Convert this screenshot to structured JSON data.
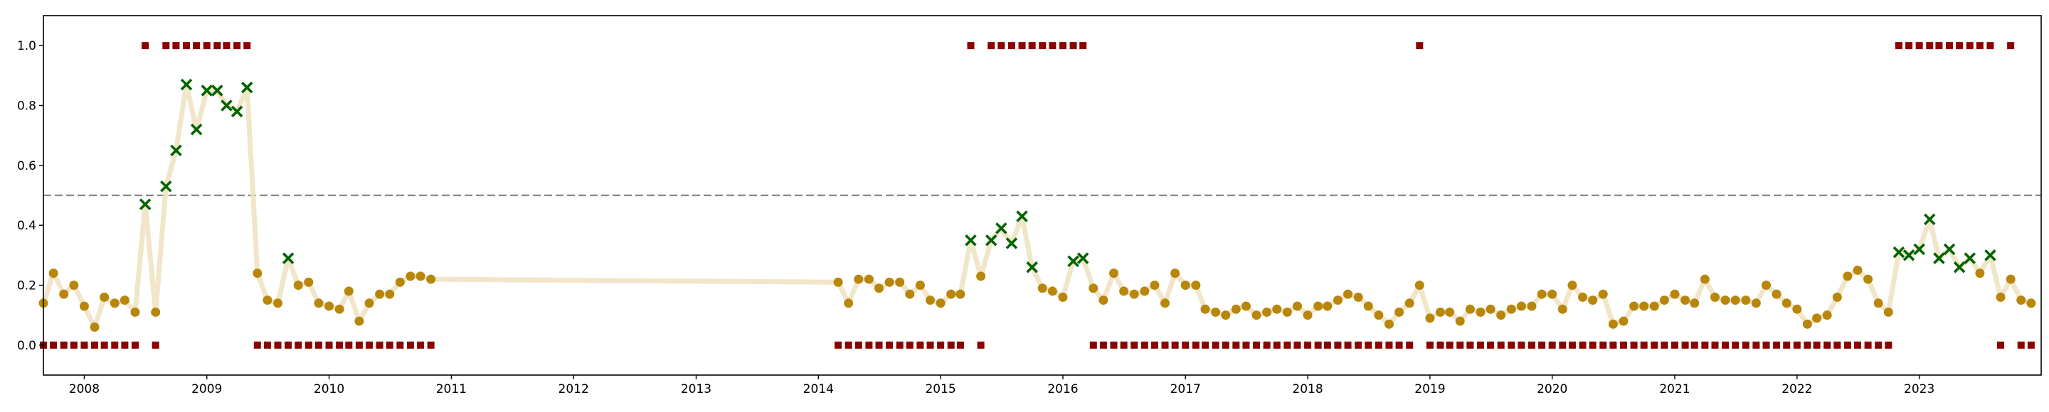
{
  "chart_data": {
    "type": "scatter",
    "title": "",
    "xlabel": "",
    "ylabel": "",
    "x_range": [
      "2007-09-01",
      "2023-12-31"
    ],
    "ylim": [
      -0.1,
      1.1
    ],
    "x_ticks": [
      "2008",
      "2009",
      "2010",
      "2011",
      "2012",
      "2013",
      "2014",
      "2015",
      "2016",
      "2017",
      "2018",
      "2019",
      "2020",
      "2021",
      "2022",
      "2023"
    ],
    "y_ticks": [
      "0.0",
      "0.2",
      "0.4",
      "0.6",
      "0.8",
      "1.0"
    ],
    "threshold": 0.5,
    "grid": false,
    "colors": {
      "line": "#f0e2c4",
      "below_marker": "#b8860b",
      "above_marker": "#006400",
      "binary_marker": "#8b0000",
      "threshold": "#888888",
      "axis": "#000000"
    },
    "series": [
      {
        "marker": "circle",
        "line": true,
        "x": [
          "2007-09-01",
          "2007-10-01",
          "2007-11-01",
          "2007-12-01",
          "2008-01-01",
          "2008-02-01",
          "2008-03-01",
          "2008-04-01",
          "2008-05-01",
          "2008-06-01",
          "2008-07-01",
          "2008-08-01",
          "2008-09-01",
          "2008-10-01",
          "2008-11-01",
          "2008-12-01",
          "2009-01-01",
          "2009-02-01",
          "2009-03-01",
          "2009-04-01",
          "2009-05-01",
          "2009-06-01",
          "2009-07-01",
          "2009-08-01",
          "2009-09-01",
          "2009-10-01",
          "2009-11-01",
          "2009-12-01",
          "2010-01-01",
          "2010-02-01",
          "2010-03-01",
          "2010-04-01",
          "2010-05-01",
          "2010-06-01",
          "2010-07-01",
          "2010-08-01",
          "2010-09-01",
          "2010-10-01",
          "2010-11-01",
          "2014-03-01",
          "2014-04-01",
          "2014-05-01",
          "2014-06-01",
          "2014-07-01",
          "2014-08-01",
          "2014-09-01",
          "2014-10-01",
          "2014-11-01",
          "2014-12-01",
          "2015-01-01",
          "2015-02-01",
          "2015-03-01",
          "2015-04-01",
          "2015-05-01",
          "2015-06-01",
          "2015-07-01",
          "2015-08-01",
          "2015-09-01",
          "2015-10-01",
          "2015-11-01",
          "2015-12-01",
          "2016-01-01",
          "2016-02-01",
          "2016-03-01",
          "2016-04-01",
          "2016-05-01",
          "2016-06-01",
          "2016-07-01",
          "2016-08-01",
          "2016-09-01",
          "2016-10-01",
          "2016-11-01",
          "2016-12-01",
          "2017-01-01",
          "2017-02-01",
          "2017-03-01",
          "2017-04-01",
          "2017-05-01",
          "2017-06-01",
          "2017-07-01",
          "2017-08-01",
          "2017-09-01",
          "2017-10-01",
          "2017-11-01",
          "2017-12-01",
          "2018-01-01",
          "2018-02-01",
          "2018-03-01",
          "2018-04-01",
          "2018-05-01",
          "2018-06-01",
          "2018-07-01",
          "2018-08-01",
          "2018-09-01",
          "2018-10-01",
          "2018-11-01",
          "2018-12-01",
          "2019-01-01",
          "2019-02-01",
          "2019-03-01",
          "2019-04-01",
          "2019-05-01",
          "2019-06-01",
          "2019-07-01",
          "2019-08-01",
          "2019-09-01",
          "2019-10-01",
          "2019-11-01",
          "2019-12-01",
          "2020-01-01",
          "2020-02-01",
          "2020-03-01",
          "2020-04-01",
          "2020-05-01",
          "2020-06-01",
          "2020-07-01",
          "2020-08-01",
          "2020-09-01",
          "2020-10-01",
          "2020-11-01",
          "2020-12-01",
          "2021-01-01",
          "2021-02-01",
          "2021-03-01",
          "2021-04-01",
          "2021-05-01",
          "2021-06-01",
          "2021-07-01",
          "2021-08-01",
          "2021-09-01",
          "2021-10-01",
          "2021-11-01",
          "2021-12-01",
          "2022-01-01",
          "2022-02-01",
          "2022-03-01",
          "2022-04-01",
          "2022-05-01",
          "2022-06-01",
          "2022-07-01",
          "2022-08-01",
          "2022-09-01",
          "2022-10-01",
          "2022-11-01",
          "2022-12-01",
          "2023-01-01",
          "2023-02-01",
          "2023-03-01",
          "2023-04-01",
          "2023-05-01",
          "2023-06-01",
          "2023-07-01",
          "2023-08-01",
          "2023-09-01",
          "2023-10-01",
          "2023-11-01",
          "2023-12-01"
        ],
        "y": [
          0.14,
          0.24,
          0.17,
          0.2,
          0.13,
          0.06,
          0.16,
          0.14,
          0.15,
          0.11,
          0.47,
          0.11,
          0.53,
          0.65,
          0.87,
          0.72,
          0.85,
          0.85,
          0.8,
          0.78,
          0.86,
          0.24,
          0.15,
          0.14,
          0.29,
          0.2,
          0.21,
          0.14,
          0.13,
          0.12,
          0.18,
          0.08,
          0.14,
          0.17,
          0.17,
          0.21,
          0.23,
          0.23,
          0.22,
          0.21,
          0.14,
          0.22,
          0.22,
          0.19,
          0.21,
          0.21,
          0.17,
          0.2,
          0.15,
          0.14,
          0.17,
          0.17,
          0.35,
          0.23,
          0.35,
          0.39,
          0.34,
          0.43,
          0.26,
          0.19,
          0.18,
          0.16,
          0.28,
          0.29,
          0.19,
          0.15,
          0.24,
          0.18,
          0.17,
          0.18,
          0.2,
          0.14,
          0.24,
          0.2,
          0.2,
          0.12,
          0.11,
          0.1,
          0.12,
          0.13,
          0.1,
          0.11,
          0.12,
          0.11,
          0.13,
          0.1,
          0.13,
          0.13,
          0.15,
          0.17,
          0.16,
          0.13,
          0.1,
          0.07,
          0.11,
          0.14,
          0.2,
          0.09,
          0.11,
          0.11,
          0.08,
          0.12,
          0.11,
          0.12,
          0.1,
          0.12,
          0.13,
          0.13,
          0.17,
          0.17,
          0.12,
          0.2,
          0.16,
          0.15,
          0.17,
          0.07,
          0.08,
          0.13,
          0.13,
          0.13,
          0.15,
          0.17,
          0.15,
          0.14,
          0.22,
          0.16,
          0.15,
          0.15,
          0.15,
          0.14,
          0.2,
          0.17,
          0.14,
          0.12,
          0.07,
          0.09,
          0.1,
          0.16,
          0.23,
          0.25,
          0.22,
          0.14,
          0.11,
          0.31,
          0.3,
          0.32,
          0.42,
          0.29,
          0.32,
          0.26,
          0.29,
          0.24,
          0.3,
          0.16,
          0.22,
          0.15,
          0.14
        ]
      },
      {
        "marker": "square",
        "line": false,
        "x": [
          "2007-09-01",
          "2007-10-01",
          "2007-11-01",
          "2007-12-01",
          "2008-01-01",
          "2008-02-01",
          "2008-03-01",
          "2008-04-01",
          "2008-05-01",
          "2008-06-01",
          "2008-07-01",
          "2008-08-01",
          "2008-09-01",
          "2008-10-01",
          "2008-11-01",
          "2008-12-01",
          "2009-01-01",
          "2009-02-01",
          "2009-03-01",
          "2009-04-01",
          "2009-05-01",
          "2009-06-01",
          "2009-07-01",
          "2009-08-01",
          "2009-09-01",
          "2009-10-01",
          "2009-11-01",
          "2009-12-01",
          "2010-01-01",
          "2010-02-01",
          "2010-03-01",
          "2010-04-01",
          "2010-05-01",
          "2010-06-01",
          "2010-07-01",
          "2010-08-01",
          "2010-09-01",
          "2010-10-01",
          "2010-11-01",
          "2014-03-01",
          "2014-04-01",
          "2014-05-01",
          "2014-06-01",
          "2014-07-01",
          "2014-08-01",
          "2014-09-01",
          "2014-10-01",
          "2014-11-01",
          "2014-12-01",
          "2015-01-01",
          "2015-02-01",
          "2015-03-01",
          "2015-04-01",
          "2015-05-01",
          "2015-06-01",
          "2015-07-01",
          "2015-08-01",
          "2015-09-01",
          "2015-10-01",
          "2015-11-01",
          "2015-12-01",
          "2016-01-01",
          "2016-02-01",
          "2016-03-01",
          "2016-04-01",
          "2016-05-01",
          "2016-06-01",
          "2016-07-01",
          "2016-08-01",
          "2016-09-01",
          "2016-10-01",
          "2016-11-01",
          "2016-12-01",
          "2017-01-01",
          "2017-02-01",
          "2017-03-01",
          "2017-04-01",
          "2017-05-01",
          "2017-06-01",
          "2017-07-01",
          "2017-08-01",
          "2017-09-01",
          "2017-10-01",
          "2017-11-01",
          "2017-12-01",
          "2018-01-01",
          "2018-02-01",
          "2018-03-01",
          "2018-04-01",
          "2018-05-01",
          "2018-06-01",
          "2018-07-01",
          "2018-08-01",
          "2018-09-01",
          "2018-10-01",
          "2018-11-01",
          "2018-12-01",
          "2019-01-01",
          "2019-02-01",
          "2019-03-01",
          "2019-04-01",
          "2019-05-01",
          "2019-06-01",
          "2019-07-01",
          "2019-08-01",
          "2019-09-01",
          "2019-10-01",
          "2019-11-01",
          "2019-12-01",
          "2020-01-01",
          "2020-02-01",
          "2020-03-01",
          "2020-04-01",
          "2020-05-01",
          "2020-06-01",
          "2020-07-01",
          "2020-08-01",
          "2020-09-01",
          "2020-10-01",
          "2020-11-01",
          "2020-12-01",
          "2021-01-01",
          "2021-02-01",
          "2021-03-01",
          "2021-04-01",
          "2021-05-01",
          "2021-06-01",
          "2021-07-01",
          "2021-08-01",
          "2021-09-01",
          "2021-10-01",
          "2021-11-01",
          "2021-12-01",
          "2022-01-01",
          "2022-02-01",
          "2022-03-01",
          "2022-04-01",
          "2022-05-01",
          "2022-06-01",
          "2022-07-01",
          "2022-08-01",
          "2022-09-01",
          "2022-10-01",
          "2022-11-01",
          "2022-12-01",
          "2023-01-01",
          "2023-02-01",
          "2023-03-01",
          "2023-04-01",
          "2023-05-01",
          "2023-06-01",
          "2023-07-01",
          "2023-08-01",
          "2023-09-01",
          "2023-10-01",
          "2023-11-01",
          "2023-12-01"
        ],
        "y": [
          0,
          0,
          0,
          0,
          0,
          0,
          0,
          0,
          0,
          0,
          1,
          0,
          1,
          1,
          1,
          1,
          1,
          1,
          1,
          1,
          1,
          0,
          0,
          0,
          0,
          0,
          0,
          0,
          0,
          0,
          0,
          0,
          0,
          0,
          0,
          0,
          0,
          0,
          0,
          0,
          0,
          0,
          0,
          0,
          0,
          0,
          0,
          0,
          0,
          0,
          0,
          0,
          1,
          0,
          1,
          1,
          1,
          1,
          1,
          1,
          1,
          1,
          1,
          1,
          0,
          0,
          0,
          0,
          0,
          0,
          0,
          0,
          0,
          0,
          0,
          0,
          0,
          0,
          0,
          0,
          0,
          0,
          0,
          0,
          0,
          0,
          0,
          0,
          0,
          0,
          0,
          0,
          0,
          0,
          0,
          0,
          1,
          0,
          0,
          0,
          0,
          0,
          0,
          0,
          0,
          0,
          0,
          0,
          0,
          0,
          0,
          0,
          0,
          0,
          0,
          0,
          0,
          0,
          0,
          0,
          0,
          0,
          0,
          0,
          0,
          0,
          0,
          0,
          0,
          0,
          0,
          0,
          0,
          0,
          0,
          0,
          0,
          0,
          0,
          0,
          0,
          0,
          0,
          1,
          1,
          1,
          1,
          1,
          1,
          1,
          1,
          1,
          1,
          0,
          1,
          0,
          0
        ]
      }
    ]
  }
}
